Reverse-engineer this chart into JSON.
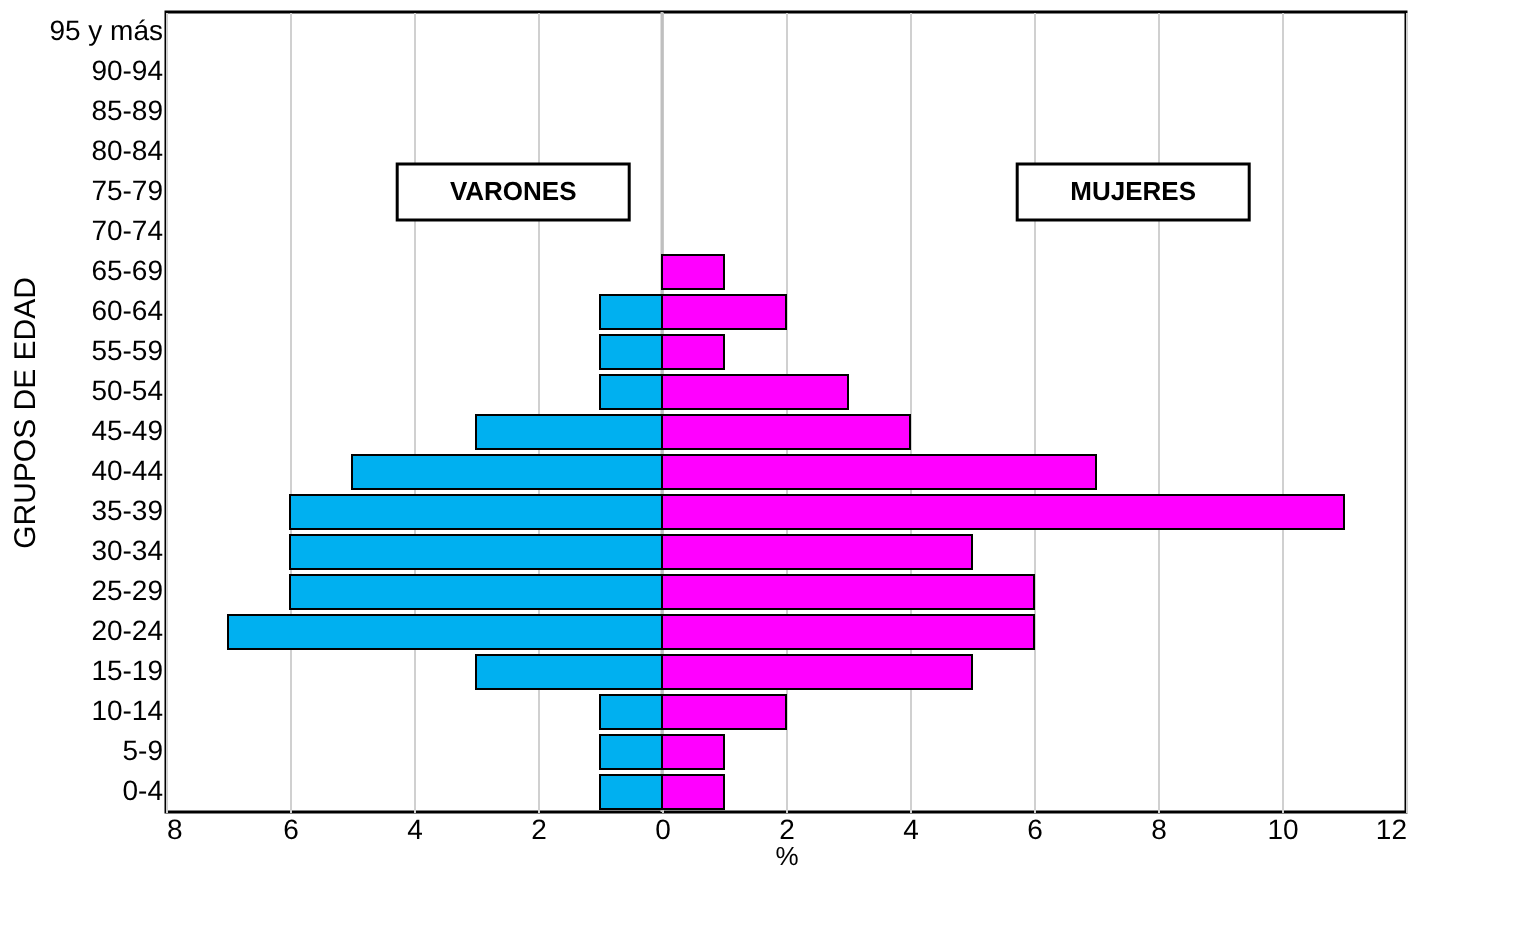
{
  "chart_data": {
    "type": "bar",
    "orientation": "horizontal",
    "stacked": true,
    "xlabel": "%",
    "ylabel": "GRUPOS DE EDAD",
    "categories": [
      "95 y más",
      "90-94",
      "85-89",
      "80-84",
      "75-79",
      "70-74",
      "65-69",
      "60-64",
      "55-59",
      "50-54",
      "45-49",
      "40-44",
      "35-39",
      "30-34",
      "25-29",
      "20-24",
      "15-19",
      "10-14",
      "5-9",
      "0-4"
    ],
    "series": [
      {
        "name": "VARONES",
        "color": "#00b0f0",
        "values": [
          null,
          null,
          null,
          null,
          null,
          null,
          null,
          -1,
          -1,
          -1,
          -3,
          -5,
          -6,
          -6,
          -6,
          -7,
          -3,
          -1,
          -1,
          -1
        ]
      },
      {
        "name": "MUJERES",
        "color": "#ff00ff",
        "values": [
          null,
          null,
          null,
          null,
          null,
          null,
          1,
          2,
          1,
          3,
          4,
          7,
          11,
          5,
          6,
          6,
          5,
          2,
          1,
          1
        ]
      }
    ],
    "xlim": [
      -8,
      12
    ],
    "xticks": [
      {
        "value": -8,
        "label": "8"
      },
      {
        "value": -6,
        "label": "6"
      },
      {
        "value": -4,
        "label": "4"
      },
      {
        "value": -2,
        "label": "2"
      },
      0,
      2,
      4,
      6,
      8,
      10,
      12
    ],
    "grid": "x"
  }
}
